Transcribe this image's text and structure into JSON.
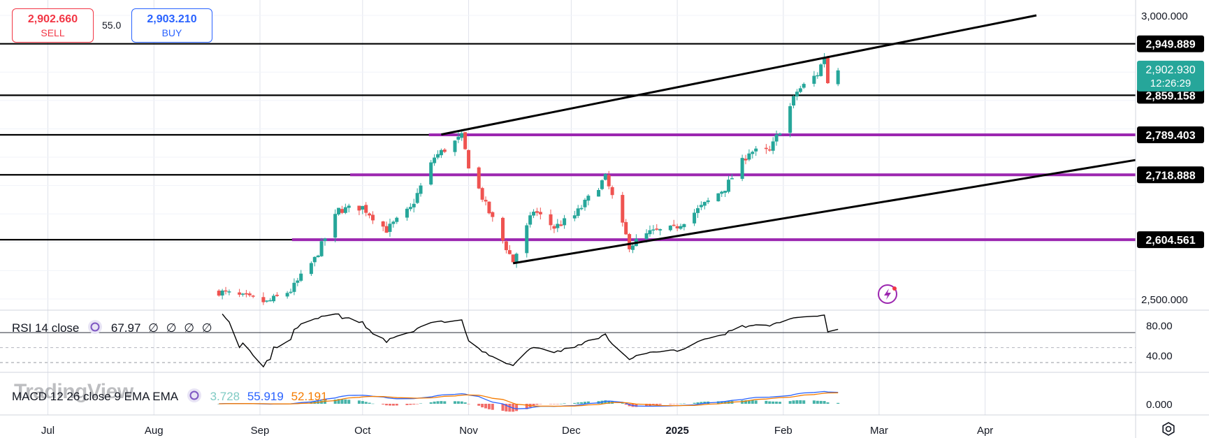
{
  "trade": {
    "sell": {
      "price": "2,902.660",
      "label": "SELL"
    },
    "spread": "55.0",
    "buy": {
      "price": "2,903.210",
      "label": "BUY"
    }
  },
  "watermark": "TradingView",
  "colors": {
    "up": "#26a69a",
    "down": "#ef5350",
    "level": "#9c27b0",
    "trend": "#000000",
    "rsi": "#000000",
    "macd": "#2962ff",
    "signal": "#f57c00"
  },
  "icons": {
    "alert": "lightning-icon",
    "settings": "gear-icon",
    "indicator": "refresh-icon"
  },
  "chart_data": [
    {
      "type": "candlestick",
      "symbol_hint": "XAU/USD daily",
      "yaxis": {
        "ticks": [
          "3,000.000",
          "2,500.000"
        ],
        "tick_values": [
          3000,
          2500
        ]
      },
      "xaxis": {
        "labels": [
          "Jul",
          "Aug",
          "Sep",
          "Oct",
          "Nov",
          "Dec",
          "2025",
          "Feb",
          "Mar",
          "Apr"
        ]
      },
      "current_price": {
        "value": "2,902.930",
        "countdown": "12:26:29"
      },
      "horizontal_lines": [
        {
          "label": "2,949.889",
          "value": 2949.889
        },
        {
          "label": "2,859.158",
          "value": 2859.158
        },
        {
          "label": "2,789.403",
          "value": 2789.403
        },
        {
          "label": "2,718.888",
          "value": 2718.888
        },
        {
          "label": "2,604.561",
          "value": 2604.561
        }
      ],
      "purple_levels": [
        2789.403,
        2718.888,
        2604.561
      ],
      "trendlines": [
        {
          "from": [
            "2024-10-24",
            2790
          ],
          "to": [
            "2025-04-16",
            3000
          ]
        },
        {
          "from": [
            "2024-11-14",
            2563
          ],
          "to": [
            "2025-05-15",
            2745
          ]
        }
      ],
      "closes": [
        {
          "date": "2024-08-20",
          "close": 2513
        },
        {
          "date": "2024-09-03",
          "close": 2494
        },
        {
          "date": "2024-09-10",
          "close": 2515
        },
        {
          "date": "2024-09-17",
          "close": 2570
        },
        {
          "date": "2024-09-24",
          "close": 2657
        },
        {
          "date": "2024-10-01",
          "close": 2662
        },
        {
          "date": "2024-10-08",
          "close": 2622
        },
        {
          "date": "2024-10-15",
          "close": 2659
        },
        {
          "date": "2024-10-22",
          "close": 2750
        },
        {
          "date": "2024-10-30",
          "close": 2786
        },
        {
          "date": "2024-11-01",
          "close": 2736
        },
        {
          "date": "2024-11-06",
          "close": 2665
        },
        {
          "date": "2024-11-14",
          "close": 2566
        },
        {
          "date": "2024-11-20",
          "close": 2656
        },
        {
          "date": "2024-11-26",
          "close": 2626
        },
        {
          "date": "2024-12-02",
          "close": 2647
        },
        {
          "date": "2024-12-11",
          "close": 2714
        },
        {
          "date": "2024-12-18",
          "close": 2594
        },
        {
          "date": "2024-12-24",
          "close": 2617
        },
        {
          "date": "2024-12-31",
          "close": 2624
        },
        {
          "date": "2025-01-08",
          "close": 2662
        },
        {
          "date": "2025-01-15",
          "close": 2696
        },
        {
          "date": "2025-01-22",
          "close": 2760
        },
        {
          "date": "2025-01-28",
          "close": 2760
        },
        {
          "date": "2025-01-31",
          "close": 2798
        },
        {
          "date": "2025-02-05",
          "close": 2866
        },
        {
          "date": "2025-02-11",
          "close": 2897
        },
        {
          "date": "2025-02-13",
          "close": 2928
        },
        {
          "date": "2025-02-14",
          "close": 2882
        },
        {
          "date": "2025-02-17",
          "close": 2903
        }
      ]
    },
    {
      "type": "line",
      "name": "RSI 14 close",
      "value": "67.97",
      "extra": [
        "∅",
        "∅",
        "∅",
        "∅"
      ],
      "ticks": [
        "80.00",
        "40.00"
      ],
      "tick_values": [
        80,
        40
      ],
      "bands": [
        70,
        30
      ],
      "ylim": [
        17,
        100
      ]
    },
    {
      "type": "line",
      "name": "MACD 12 26 close 9 EMA EMA",
      "values": [
        "3.728",
        "55.919",
        "52.191"
      ],
      "ticks": [
        "0.000"
      ],
      "tick_values": [
        0
      ]
    }
  ]
}
